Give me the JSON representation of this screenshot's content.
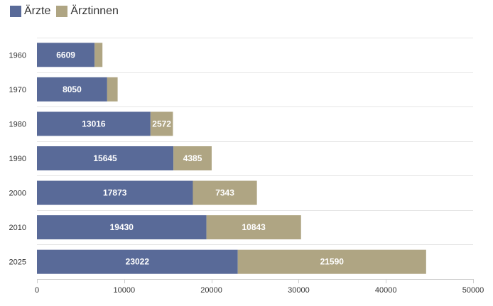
{
  "chart_data": {
    "type": "bar",
    "orientation": "horizontal",
    "stacked": true,
    "categories": [
      "1960",
      "1970",
      "1980",
      "1990",
      "2000",
      "2010",
      "2025"
    ],
    "series": [
      {
        "name": "Ärzte",
        "color": "#596a98",
        "values": [
          6609,
          8050,
          13016,
          15645,
          17873,
          19430,
          23022
        ],
        "labels": [
          "6609",
          "8050",
          "13016",
          "15645",
          "17873",
          "19430",
          "23022"
        ]
      },
      {
        "name": "Ärztinnen",
        "color": "#afa583",
        "values": [
          900,
          1200,
          2572,
          4385,
          7343,
          10843,
          21590
        ],
        "labels": [
          "",
          "",
          "2572",
          "4385",
          "7343",
          "10843",
          "21590"
        ]
      }
    ],
    "xlim": [
      0,
      50000
    ],
    "xticks": [
      0,
      10000,
      20000,
      30000,
      40000,
      50000
    ],
    "xtick_labels": [
      "0",
      "10000",
      "20000",
      "30000",
      "40000",
      "50000"
    ],
    "legend_position": "top-left",
    "grid": "horizontal separators"
  }
}
